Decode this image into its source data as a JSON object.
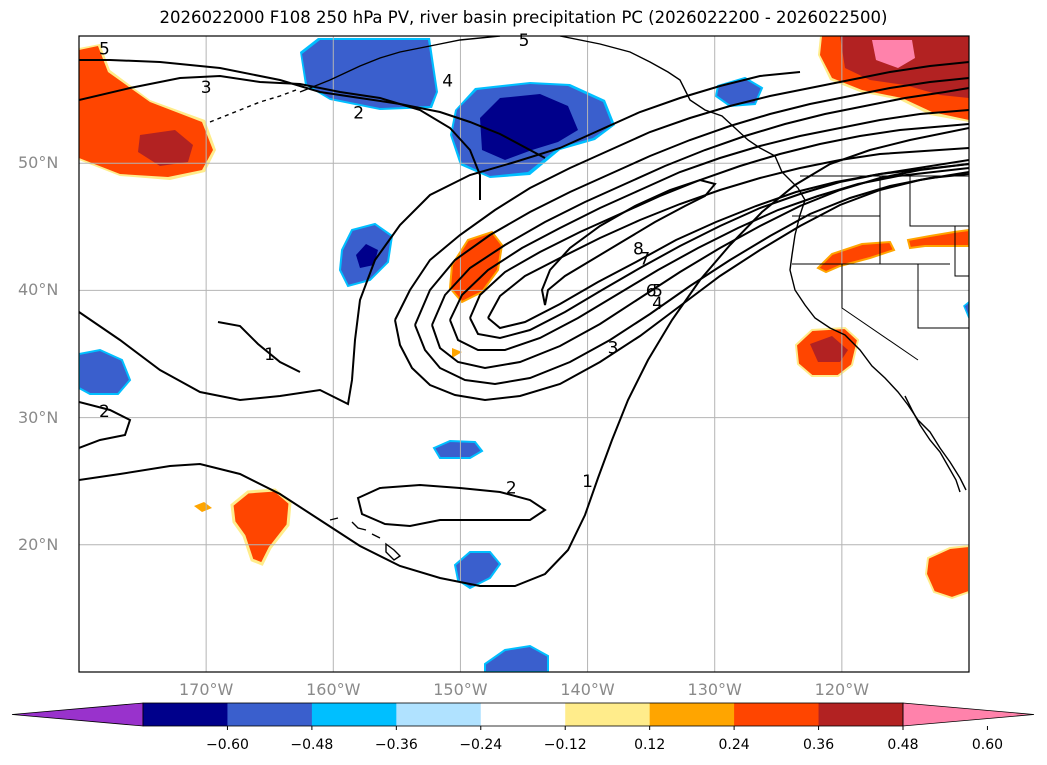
{
  "title": "2026022000 F108 250 hPa PV, river basin precipitation PC (2026022200 - 2026022500)",
  "map": {
    "projection": "PlateCarree",
    "lon_range": [
      -180,
      -110
    ],
    "lat_range": [
      10,
      60
    ],
    "lat_ticks": [
      {
        "value": 20,
        "label": "20°N"
      },
      {
        "value": 30,
        "label": "30°N"
      },
      {
        "value": 40,
        "label": "40°N"
      },
      {
        "value": 50,
        "label": "50°N"
      }
    ],
    "lon_ticks": [
      {
        "value": -170,
        "label": "170°W"
      },
      {
        "value": -160,
        "label": "160°W"
      },
      {
        "value": -150,
        "label": "150°W"
      },
      {
        "value": -140,
        "label": "140°W"
      },
      {
        "value": -130,
        "label": "130°W"
      },
      {
        "value": -120,
        "label": "120°W"
      }
    ],
    "pv_contour_labels": [
      {
        "text": "5",
        "lon": -178,
        "lat": 59
      },
      {
        "text": "3",
        "lon": -170,
        "lat": 56
      },
      {
        "text": "2",
        "lon": -158,
        "lat": 54
      },
      {
        "text": "4",
        "lon": -151,
        "lat": 56.5
      },
      {
        "text": "5",
        "lon": -145,
        "lat": 59.7
      },
      {
        "text": "8",
        "lon": -136,
        "lat": 43.3
      },
      {
        "text": "7",
        "lon": -135.5,
        "lat": 42.5
      },
      {
        "text": "6",
        "lon": -135,
        "lat": 40
      },
      {
        "text": "5",
        "lon": -134.5,
        "lat": 40
      },
      {
        "text": "4",
        "lon": -134.5,
        "lat": 39
      },
      {
        "text": "3",
        "lon": -138,
        "lat": 35.5
      },
      {
        "text": "1",
        "lon": -165,
        "lat": 35
      },
      {
        "text": "2",
        "lon": -178,
        "lat": 30.5
      },
      {
        "text": "2",
        "lon": -146,
        "lat": 24.5
      },
      {
        "text": "1",
        "lon": -140,
        "lat": 25
      }
    ]
  },
  "colorbar": {
    "colors": [
      "#9932cc",
      "#00008b",
      "#3a5fcd",
      "#00bfff",
      "#b0e2ff",
      "#ffffff",
      "#ffec8b",
      "#ffa500",
      "#ff4500",
      "#b22222",
      "#ff82ab"
    ],
    "tick_labels": [
      "−0.60",
      "−0.48",
      "−0.36",
      "−0.24",
      "−0.12",
      "0.12",
      "0.24",
      "0.36",
      "0.48",
      "0.60"
    ]
  }
}
